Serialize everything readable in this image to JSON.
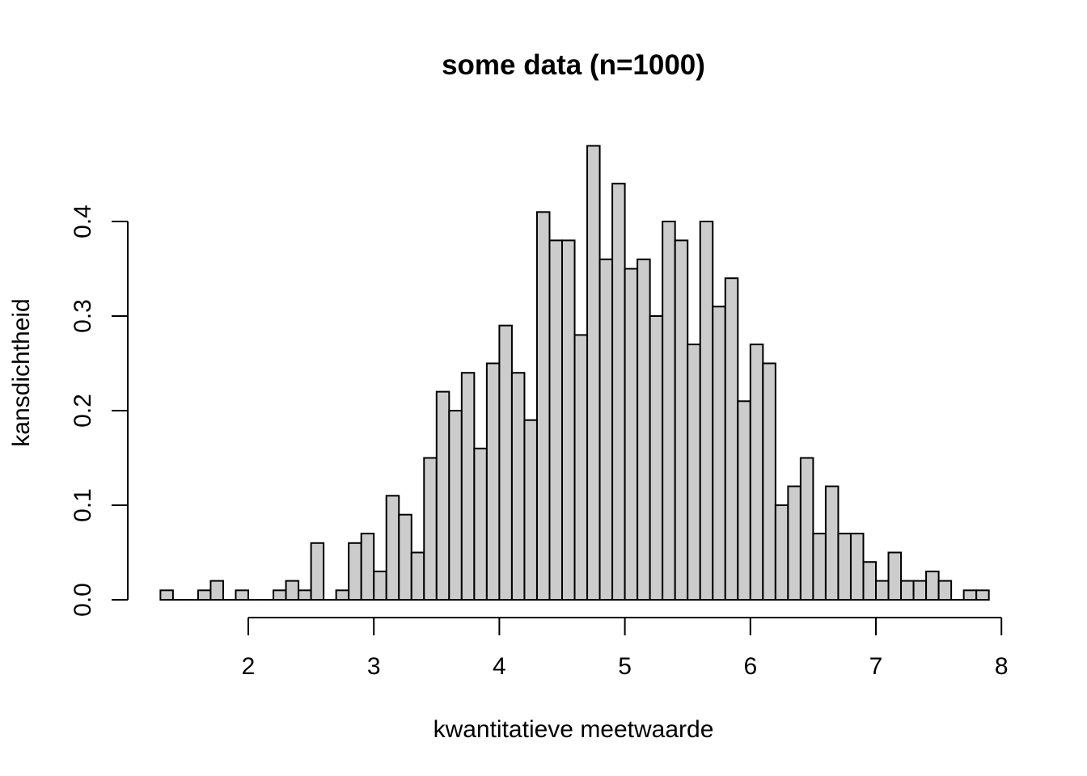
{
  "chart_data": {
    "type": "bar",
    "title": "some data (n=1000)",
    "xlabel": "kwantitatieve meetwaarde",
    "ylabel": "kansdichtheid",
    "bin_width": 0.1,
    "bin_start": 1.3,
    "values": [
      0.01,
      0.0,
      0.0,
      0.01,
      0.02,
      0.0,
      0.01,
      0.0,
      0.0,
      0.01,
      0.02,
      0.01,
      0.06,
      0.0,
      0.01,
      0.06,
      0.07,
      0.03,
      0.11,
      0.09,
      0.05,
      0.15,
      0.22,
      0.2,
      0.24,
      0.16,
      0.25,
      0.29,
      0.24,
      0.19,
      0.41,
      0.38,
      0.38,
      0.28,
      0.48,
      0.36,
      0.44,
      0.35,
      0.36,
      0.3,
      0.4,
      0.38,
      0.27,
      0.4,
      0.31,
      0.34,
      0.21,
      0.27,
      0.25,
      0.1,
      0.12,
      0.15,
      0.07,
      0.12,
      0.07,
      0.07,
      0.04,
      0.02,
      0.05,
      0.02,
      0.02,
      0.03,
      0.02,
      0.0,
      0.01,
      0.01
    ],
    "xlim": [
      1.3,
      7.9
    ],
    "ylim": [
      0,
      0.48
    ],
    "x_ticks": [
      "2",
      "3",
      "4",
      "5",
      "6",
      "7",
      "8"
    ],
    "y_ticks": [
      "0.0",
      "0.1",
      "0.2",
      "0.3",
      "0.4"
    ],
    "grid": false
  }
}
